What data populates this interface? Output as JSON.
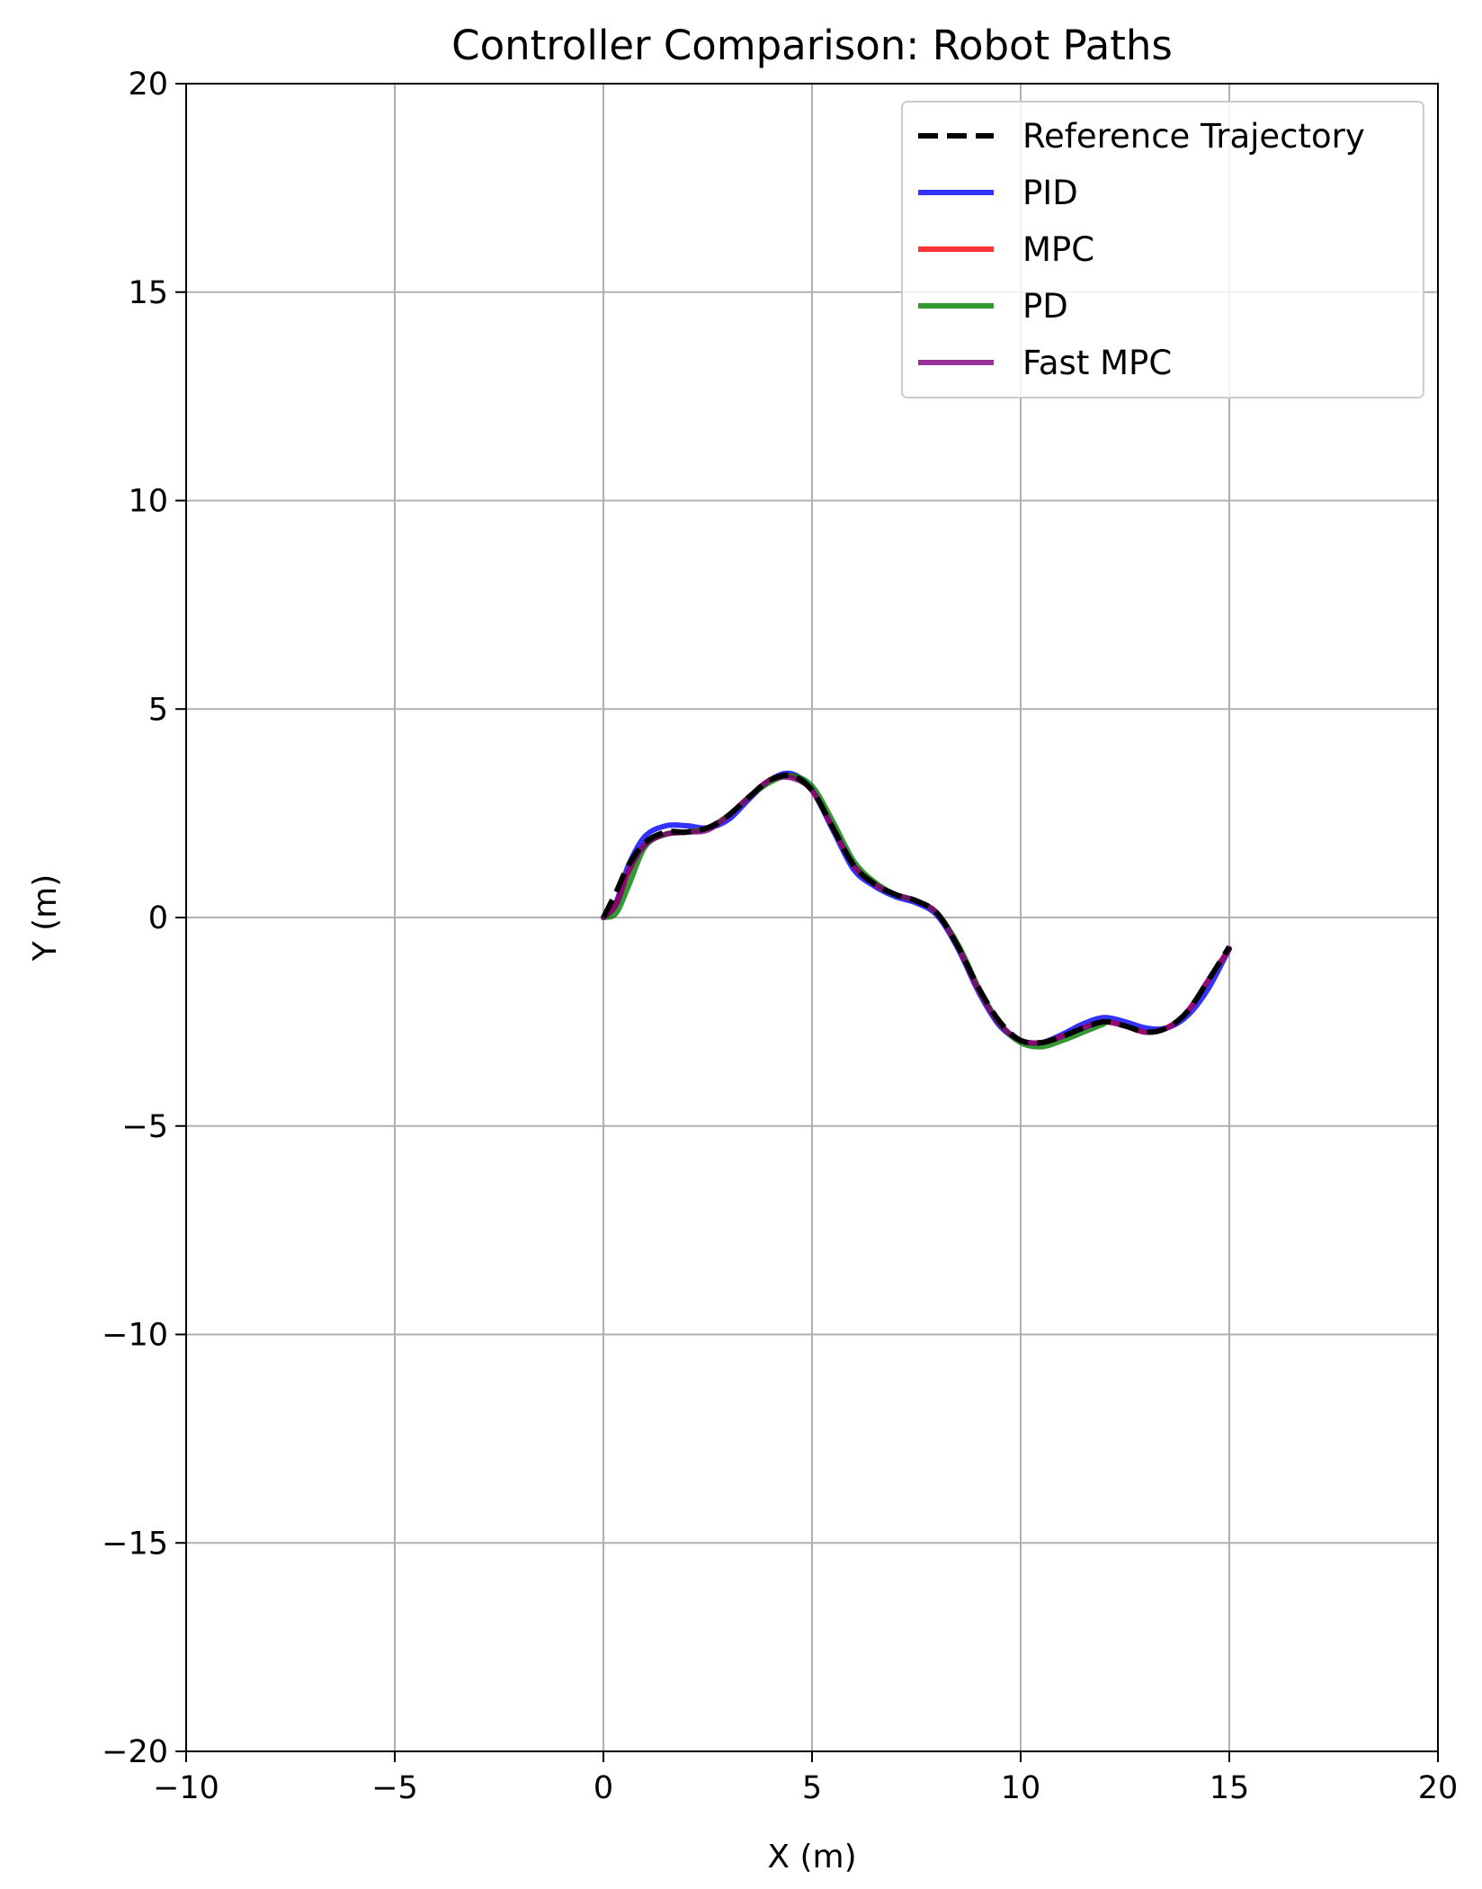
{
  "chart_data": {
    "type": "line",
    "title": "Controller Comparison: Robot Paths",
    "xlabel": "X (m)",
    "ylabel": "Y (m)",
    "xlim": [
      -10,
      20
    ],
    "ylim": [
      -20,
      20
    ],
    "xticks": [
      -10,
      -5,
      0,
      5,
      10,
      15,
      20
    ],
    "yticks": [
      -20,
      -15,
      -10,
      -5,
      0,
      5,
      10,
      15,
      20
    ],
    "xtick_labels": [
      "−10",
      "−5",
      "0",
      "5",
      "10",
      "15",
      "20"
    ],
    "ytick_labels": [
      "−20",
      "−15",
      "−10",
      "−5",
      "0",
      "5",
      "10",
      "15",
      "20"
    ],
    "grid": true,
    "legend_position": "top-right",
    "series": [
      {
        "name": "Reference Trajectory",
        "color": "#000000",
        "style": "dashed",
        "x": [
          0.0,
          0.3,
          0.6,
          1.0,
          1.5,
          2.0,
          2.5,
          3.0,
          3.5,
          4.0,
          4.5,
          5.0,
          5.5,
          6.0,
          6.5,
          7.0,
          7.5,
          8.0,
          8.5,
          9.0,
          9.5,
          10.0,
          10.5,
          11.0,
          11.5,
          12.0,
          12.5,
          13.0,
          13.5,
          14.0,
          14.5,
          15.0
        ],
        "y": [
          0.0,
          0.6,
          1.25,
          1.8,
          2.05,
          2.05,
          2.15,
          2.45,
          2.9,
          3.3,
          3.4,
          3.05,
          2.15,
          1.25,
          0.8,
          0.55,
          0.4,
          0.1,
          -0.7,
          -1.7,
          -2.5,
          -2.95,
          -3.0,
          -2.85,
          -2.65,
          -2.5,
          -2.6,
          -2.75,
          -2.65,
          -2.25,
          -1.5,
          -0.7
        ]
      },
      {
        "name": "PID",
        "color": "#0000ff",
        "style": "solid",
        "x": [
          0.0,
          0.3,
          0.6,
          1.0,
          1.5,
          2.0,
          2.5,
          3.0,
          3.5,
          4.0,
          4.5,
          5.0,
          5.5,
          6.0,
          6.5,
          7.0,
          7.5,
          8.0,
          8.5,
          9.0,
          9.5,
          10.0,
          10.5,
          11.0,
          11.5,
          12.0,
          12.5,
          13.0,
          13.5,
          14.0,
          14.5,
          15.0
        ],
        "y": [
          0.0,
          0.35,
          1.25,
          1.95,
          2.2,
          2.2,
          2.15,
          2.35,
          2.85,
          3.3,
          3.45,
          3.05,
          2.1,
          1.15,
          0.75,
          0.5,
          0.35,
          0.05,
          -0.75,
          -1.8,
          -2.6,
          -2.95,
          -3.0,
          -2.8,
          -2.55,
          -2.4,
          -2.5,
          -2.65,
          -2.65,
          -2.35,
          -1.7,
          -0.75
        ]
      },
      {
        "name": "MPC",
        "color": "#ff0000",
        "style": "solid",
        "x": [
          0.0,
          0.3,
          0.6,
          1.0,
          1.5,
          2.0,
          2.5,
          3.0,
          3.5,
          4.0,
          4.5,
          5.0,
          5.5,
          6.0,
          6.5,
          7.0,
          7.5,
          8.0,
          8.5,
          9.0,
          9.5,
          10.0,
          10.5,
          11.0,
          11.5,
          12.0,
          12.5,
          13.0,
          13.5,
          14.0,
          14.5,
          15.0
        ],
        "y": [
          0.0,
          0.3,
          1.1,
          1.75,
          2.0,
          2.05,
          2.15,
          2.45,
          2.9,
          3.3,
          3.4,
          3.05,
          2.15,
          1.25,
          0.8,
          0.55,
          0.4,
          0.1,
          -0.7,
          -1.75,
          -2.55,
          -2.95,
          -3.0,
          -2.85,
          -2.65,
          -2.5,
          -2.6,
          -2.75,
          -2.65,
          -2.25,
          -1.5,
          -0.75
        ]
      },
      {
        "name": "PD",
        "color": "#008000",
        "style": "solid",
        "x": [
          0.0,
          0.3,
          0.6,
          1.0,
          1.5,
          2.0,
          2.5,
          3.0,
          3.5,
          4.0,
          4.5,
          5.0,
          5.5,
          6.0,
          6.5,
          7.0,
          7.5,
          8.0,
          8.5,
          9.0,
          9.5,
          10.0,
          10.5,
          11.0,
          11.5,
          12.0
        ],
        "y": [
          0.0,
          0.1,
          0.75,
          1.7,
          2.0,
          2.05,
          2.15,
          2.45,
          2.9,
          3.25,
          3.4,
          3.15,
          2.3,
          1.35,
          0.85,
          0.55,
          0.4,
          0.1,
          -0.65,
          -1.7,
          -2.55,
          -3.0,
          -3.1,
          -2.95,
          -2.75,
          -2.55
        ]
      },
      {
        "name": "Fast MPC",
        "color": "#800080",
        "style": "solid",
        "x": [
          0.0,
          0.3,
          0.6,
          1.0,
          1.5,
          2.0,
          2.5,
          3.0,
          3.5,
          4.0,
          4.5,
          5.0,
          5.5,
          6.0,
          6.5,
          7.0,
          7.5,
          8.0,
          8.5,
          9.0,
          9.5,
          10.0,
          10.5,
          11.0,
          11.5,
          12.0,
          12.5,
          13.0,
          13.5,
          14.0,
          14.5,
          15.0
        ],
        "y": [
          0.0,
          0.3,
          1.1,
          1.75,
          2.0,
          2.05,
          2.1,
          2.45,
          2.9,
          3.3,
          3.35,
          3.05,
          2.15,
          1.25,
          0.8,
          0.55,
          0.4,
          0.1,
          -0.7,
          -1.75,
          -2.55,
          -2.95,
          -3.0,
          -2.85,
          -2.65,
          -2.5,
          -2.6,
          -2.75,
          -2.65,
          -2.25,
          -1.5,
          -0.75
        ]
      }
    ]
  }
}
